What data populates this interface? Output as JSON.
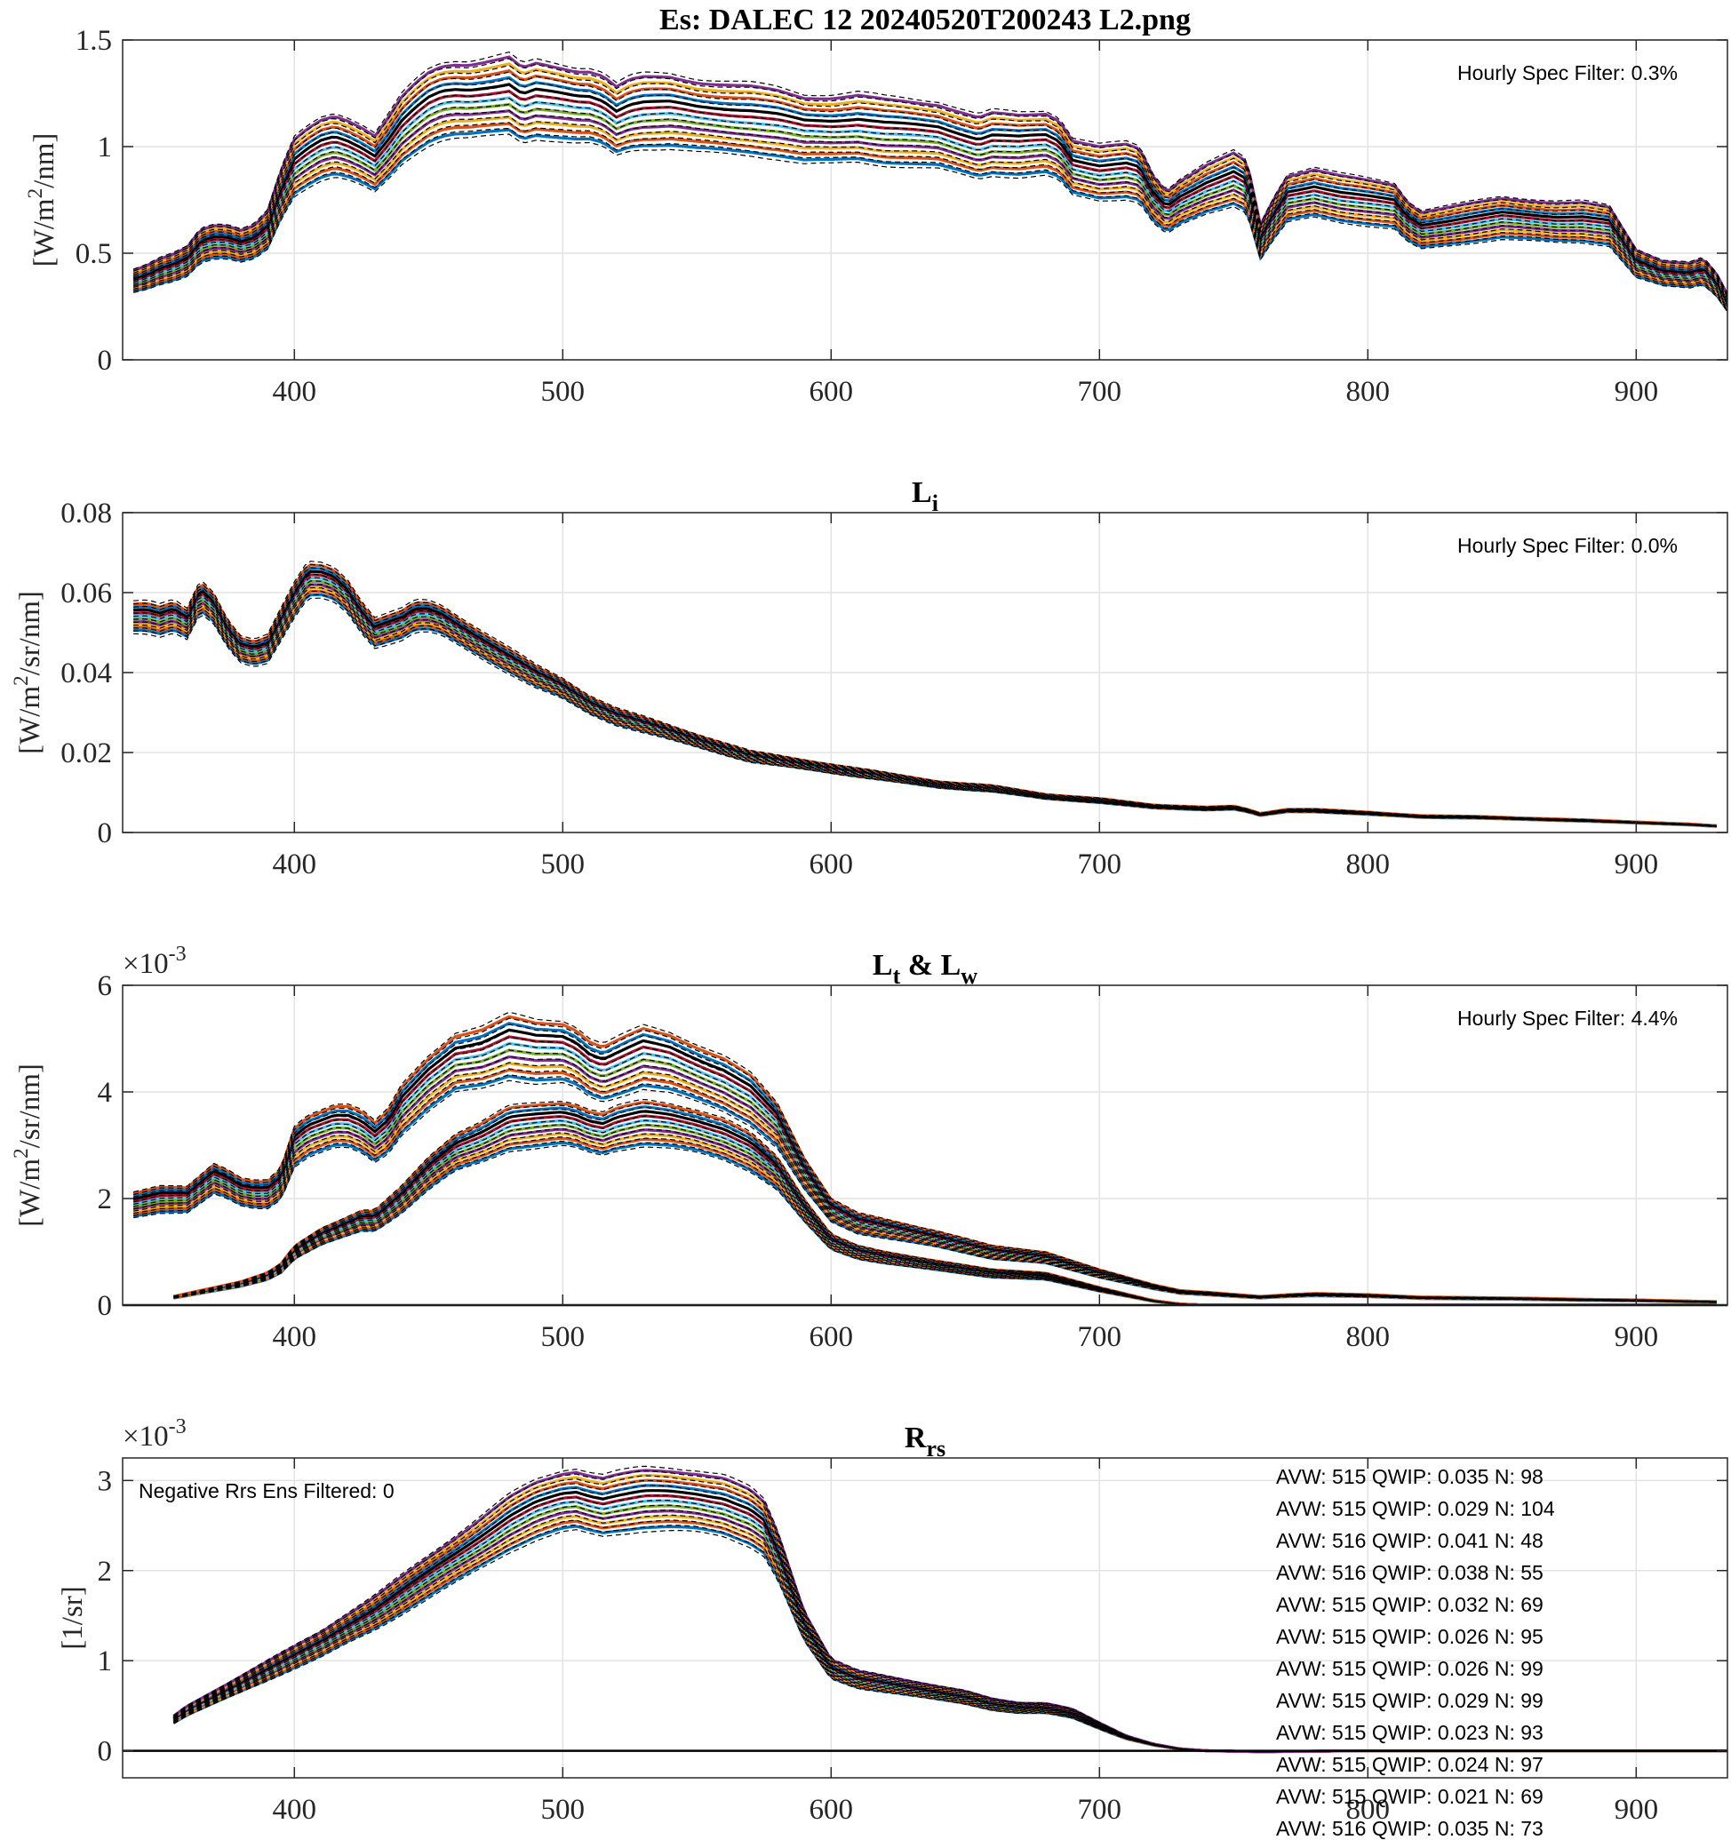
{
  "chart_data": [
    {
      "type": "line",
      "title": "Es: DALEC 12 20240520T200243 L2.png",
      "ylabel": "[W/m^2/nm]",
      "ylabel_parts": [
        "[W/m",
        "2",
        "/nm]"
      ],
      "xlim": [
        336,
        934
      ],
      "ylim": [
        0,
        1.5
      ],
      "xticks": [
        400,
        500,
        600,
        700,
        800,
        900
      ],
      "yticks": [
        0,
        0.5,
        1,
        1.5
      ],
      "ytick_labels": [
        "0",
        "0.5",
        "1",
        "1.5"
      ],
      "exponent_label": "",
      "grid": true,
      "annotations": [
        "Hourly Spec Filter: 0.3%"
      ],
      "reference_spectrum": {
        "x": [
          340,
          345,
          350,
          355,
          360,
          365,
          370,
          375,
          380,
          385,
          390,
          395,
          400,
          405,
          410,
          415,
          420,
          425,
          430,
          435,
          440,
          445,
          450,
          455,
          460,
          465,
          470,
          475,
          480,
          485,
          490,
          495,
          500,
          505,
          510,
          515,
          520,
          525,
          530,
          540,
          550,
          560,
          570,
          580,
          590,
          600,
          610,
          620,
          630,
          640,
          650,
          655,
          660,
          670,
          680,
          685,
          690,
          700,
          710,
          715,
          720,
          725,
          730,
          740,
          750,
          755,
          760,
          765,
          770,
          780,
          790,
          800,
          810,
          815,
          820,
          830,
          840,
          850,
          860,
          870,
          880,
          890,
          900,
          910,
          920,
          925,
          930,
          934
        ],
        "y": [
          0.4,
          0.42,
          0.45,
          0.47,
          0.5,
          0.58,
          0.6,
          0.6,
          0.58,
          0.6,
          0.66,
          0.84,
          0.98,
          1.03,
          1.07,
          1.09,
          1.07,
          1.04,
          1.0,
          1.08,
          1.17,
          1.23,
          1.28,
          1.31,
          1.32,
          1.32,
          1.33,
          1.34,
          1.35,
          1.3,
          1.32,
          1.31,
          1.3,
          1.29,
          1.29,
          1.27,
          1.22,
          1.25,
          1.26,
          1.26,
          1.24,
          1.23,
          1.22,
          1.2,
          1.17,
          1.17,
          1.18,
          1.16,
          1.15,
          1.14,
          1.1,
          1.08,
          1.1,
          1.09,
          1.1,
          1.07,
          0.98,
          0.95,
          0.96,
          0.94,
          0.82,
          0.75,
          0.8,
          0.87,
          0.92,
          0.88,
          0.6,
          0.72,
          0.82,
          0.85,
          0.82,
          0.8,
          0.78,
          0.7,
          0.66,
          0.68,
          0.7,
          0.72,
          0.71,
          0.7,
          0.7,
          0.68,
          0.49,
          0.44,
          0.43,
          0.45,
          0.38,
          0.29
        ]
      },
      "ensemble": {
        "count": 12,
        "scale_min": 0.8,
        "scale_max": 1.05
      },
      "series_colors": [
        "#0072BD",
        "#D95319",
        "#EDB120",
        "#7E2F8E",
        "#77AC30",
        "#4DBEEE",
        "#A2142F",
        "#000000"
      ]
    },
    {
      "type": "line",
      "title": "L",
      "title_subscript": "i",
      "ylabel": "[W/m^2/sr/nm]",
      "ylabel_parts": [
        "[W/m",
        "2",
        "/sr/nm]"
      ],
      "xlim": [
        336,
        934
      ],
      "ylim": [
        0,
        0.08
      ],
      "xticks": [
        400,
        500,
        600,
        700,
        800,
        900
      ],
      "yticks": [
        0,
        0.02,
        0.04,
        0.06,
        0.08
      ],
      "ytick_labels": [
        "0",
        "0.02",
        "0.04",
        "0.06",
        "0.08"
      ],
      "exponent_label": "",
      "grid": true,
      "annotations": [
        "Hourly Spec Filter: 0.0%"
      ],
      "reference_spectrum": {
        "x": [
          340,
          345,
          350,
          355,
          360,
          365,
          370,
          375,
          380,
          385,
          390,
          395,
          400,
          405,
          410,
          415,
          420,
          425,
          430,
          435,
          440,
          445,
          450,
          455,
          460,
          470,
          480,
          490,
          500,
          510,
          520,
          530,
          540,
          550,
          560,
          570,
          580,
          590,
          600,
          620,
          640,
          660,
          680,
          700,
          720,
          740,
          750,
          755,
          760,
          765,
          770,
          780,
          800,
          820,
          840,
          860,
          880,
          900,
          920,
          930
        ],
        "y": [
          0.054,
          0.054,
          0.053,
          0.054,
          0.052,
          0.059,
          0.056,
          0.05,
          0.046,
          0.045,
          0.046,
          0.052,
          0.058,
          0.063,
          0.063,
          0.062,
          0.059,
          0.054,
          0.05,
          0.051,
          0.052,
          0.054,
          0.054,
          0.053,
          0.051,
          0.047,
          0.043,
          0.039,
          0.036,
          0.032,
          0.029,
          0.027,
          0.025,
          0.023,
          0.021,
          0.019,
          0.018,
          0.017,
          0.016,
          0.014,
          0.012,
          0.011,
          0.009,
          0.008,
          0.0065,
          0.006,
          0.0062,
          0.0055,
          0.0045,
          0.005,
          0.0055,
          0.0055,
          0.0048,
          0.004,
          0.0038,
          0.0034,
          0.003,
          0.0025,
          0.002,
          0.0016
        ]
      },
      "ensemble": {
        "count": 10,
        "scale_min": 0.94,
        "scale_max": 1.06
      },
      "series_colors": [
        "#0072BD",
        "#D95319",
        "#EDB120",
        "#7E2F8E",
        "#77AC30",
        "#4DBEEE",
        "#A2142F",
        "#000000"
      ]
    },
    {
      "type": "line",
      "title": "L",
      "title_subscript": "t",
      "title_mid": " & L",
      "title_subscript2": "w",
      "ylabel": "[W/m^2/sr/nm]",
      "ylabel_parts": [
        "[W/m",
        "2",
        "/sr/nm]"
      ],
      "xlim": [
        336,
        934
      ],
      "ylim": [
        0,
        6
      ],
      "xticks": [
        400,
        500,
        600,
        700,
        800,
        900
      ],
      "yticks": [
        0,
        2,
        4,
        6
      ],
      "ytick_labels": [
        "0",
        "2",
        "4",
        "6"
      ],
      "exponent_label": "×10^-3",
      "exponent_parts": [
        "×10",
        "-3"
      ],
      "grid": true,
      "zero_line": true,
      "annotations": [
        "Hourly Spec Filter: 4.4%"
      ],
      "reference_spectrum": {
        "x": [
          340,
          345,
          350,
          355,
          360,
          365,
          370,
          375,
          380,
          385,
          390,
          395,
          400,
          405,
          410,
          415,
          420,
          425,
          430,
          435,
          440,
          450,
          460,
          470,
          480,
          490,
          500,
          505,
          510,
          515,
          520,
          525,
          530,
          540,
          550,
          560,
          570,
          580,
          590,
          600,
          610,
          620,
          640,
          660,
          680,
          700,
          720,
          730,
          740,
          760,
          770,
          780,
          800,
          820,
          840,
          860,
          880,
          900,
          920,
          930
        ],
        "y": [
          1.9,
          1.95,
          2.0,
          2.0,
          2.0,
          2.2,
          2.4,
          2.3,
          2.15,
          2.1,
          2.1,
          2.3,
          3.0,
          3.2,
          3.3,
          3.4,
          3.4,
          3.3,
          3.1,
          3.3,
          3.7,
          4.2,
          4.6,
          4.7,
          4.9,
          4.8,
          4.8,
          4.7,
          4.5,
          4.4,
          4.5,
          4.6,
          4.7,
          4.6,
          4.4,
          4.2,
          3.9,
          3.4,
          2.5,
          1.8,
          1.55,
          1.45,
          1.25,
          1.0,
          0.9,
          0.6,
          0.35,
          0.25,
          0.22,
          0.15,
          0.18,
          0.2,
          0.18,
          0.14,
          0.13,
          0.12,
          0.1,
          0.09,
          0.07,
          0.06
        ]
      },
      "reference_spectrum_2": {
        "x": [
          355,
          360,
          370,
          380,
          390,
          395,
          400,
          410,
          420,
          425,
          430,
          440,
          450,
          460,
          470,
          480,
          490,
          500,
          505,
          510,
          515,
          520,
          525,
          530,
          540,
          550,
          560,
          570,
          580,
          590,
          600,
          610,
          620,
          640,
          660,
          680,
          700,
          720,
          730,
          740,
          760,
          800,
          860,
          900,
          930
        ],
        "y": [
          0.15,
          0.2,
          0.3,
          0.4,
          0.55,
          0.7,
          1.0,
          1.3,
          1.5,
          1.6,
          1.6,
          2.0,
          2.5,
          2.9,
          3.1,
          3.35,
          3.4,
          3.45,
          3.4,
          3.3,
          3.25,
          3.35,
          3.4,
          3.45,
          3.4,
          3.3,
          3.15,
          2.9,
          2.5,
          1.8,
          1.2,
          1.0,
          0.9,
          0.75,
          0.6,
          0.55,
          0.3,
          0.08,
          0.02,
          0.0,
          0.0,
          0.0,
          0.0,
          0.0,
          0.0
        ]
      },
      "ensemble": {
        "count": 10,
        "scale_min": 0.88,
        "scale_max": 1.1
      },
      "series_colors": [
        "#0072BD",
        "#D95319",
        "#EDB120",
        "#7E2F8E",
        "#77AC30",
        "#4DBEEE",
        "#A2142F",
        "#000000"
      ]
    },
    {
      "type": "line",
      "title": "R",
      "title_subscript": "rs",
      "ylabel": "[1/sr]",
      "ylabel_parts": [
        "[1/sr]",
        "",
        ""
      ],
      "xlim": [
        336,
        934
      ],
      "ylim": [
        -0.3,
        3.25
      ],
      "xticks": [
        400,
        500,
        600,
        700,
        800,
        900
      ],
      "yticks": [
        0,
        1,
        2,
        3
      ],
      "ytick_labels": [
        "0",
        "1",
        "2",
        "3"
      ],
      "exponent_label": "×10^-3",
      "exponent_parts": [
        "×10",
        "-3"
      ],
      "grid": true,
      "zero_line": true,
      "annotations": [
        "Negative Rrs Ens Filtered: 0"
      ],
      "legend_entries": [
        "AVW: 515 QWIP: 0.035 N: 98",
        "AVW: 515 QWIP: 0.029 N: 104",
        "AVW: 516 QWIP: 0.041 N: 48",
        "AVW: 516 QWIP: 0.038 N: 55",
        "AVW: 515 QWIP: 0.032 N: 69",
        "AVW: 515 QWIP: 0.026 N: 95",
        "AVW: 515 QWIP: 0.026 N: 99",
        "AVW: 515 QWIP: 0.029 N: 99",
        "AVW: 515 QWIP: 0.023 N: 93",
        "AVW: 515 QWIP: 0.024 N: 97",
        "AVW: 515 QWIP: 0.021 N: 69",
        "AVW: 516 QWIP: 0.035 N: 73"
      ],
      "reference_spectrum": {
        "x": [
          355,
          360,
          370,
          380,
          390,
          400,
          410,
          420,
          430,
          440,
          450,
          460,
          470,
          480,
          490,
          500,
          505,
          510,
          515,
          520,
          525,
          530,
          540,
          550,
          560,
          570,
          575,
          580,
          590,
          600,
          610,
          620,
          630,
          640,
          650,
          660,
          670,
          680,
          690,
          700,
          710,
          720,
          730,
          740,
          760,
          800,
          860,
          900,
          934
        ],
        "y": [
          0.35,
          0.45,
          0.6,
          0.75,
          0.9,
          1.05,
          1.2,
          1.38,
          1.55,
          1.75,
          1.95,
          2.15,
          2.35,
          2.55,
          2.7,
          2.8,
          2.82,
          2.78,
          2.75,
          2.78,
          2.8,
          2.82,
          2.82,
          2.8,
          2.75,
          2.62,
          2.5,
          2.2,
          1.4,
          0.92,
          0.8,
          0.75,
          0.7,
          0.65,
          0.6,
          0.52,
          0.48,
          0.48,
          0.42,
          0.28,
          0.15,
          0.07,
          0.02,
          0.0,
          -0.01,
          0.0,
          0.0,
          0.0,
          0.0
        ]
      },
      "ensemble": {
        "count": 12,
        "scale_min": 0.88,
        "scale_max": 1.1
      },
      "series_colors": [
        "#0072BD",
        "#D95319",
        "#EDB120",
        "#7E2F8E",
        "#77AC30",
        "#4DBEEE",
        "#A2142F",
        "#000000"
      ]
    }
  ]
}
